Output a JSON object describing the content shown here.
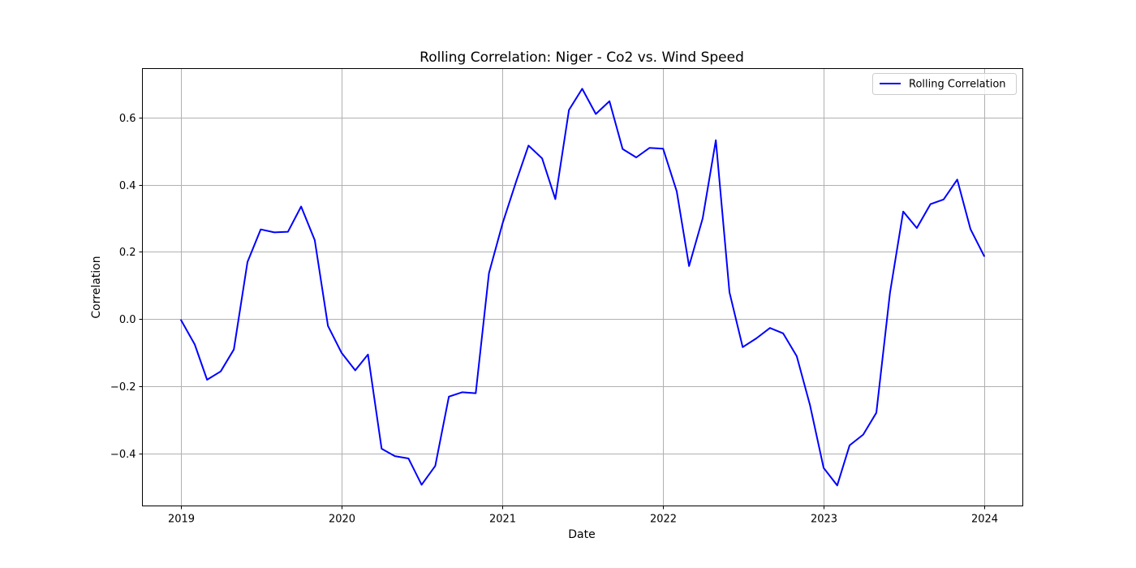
{
  "chart_data": {
    "type": "line",
    "title": "Rolling Correlation: Niger - Co2 vs. Wind Speed",
    "xlabel": "Date",
    "ylabel": "Correlation",
    "x_tick_labels": [
      "2019",
      "2020",
      "2021",
      "2022",
      "2023",
      "2024"
    ],
    "y_tick_labels": [
      "−0.4",
      "−0.2",
      "0.0",
      "0.2",
      "0.4",
      "0.6"
    ],
    "y_ticks": [
      -0.4,
      -0.2,
      0.0,
      0.2,
      0.4,
      0.6
    ],
    "xlim": [
      "2018-10-05",
      "2024-03-29"
    ],
    "ylim": [
      -0.555,
      0.745
    ],
    "grid": true,
    "legend": {
      "position": "top-right",
      "entries": [
        "Rolling Correlation"
      ]
    },
    "series": [
      {
        "name": "Rolling Correlation",
        "color": "#0000ff",
        "x": [
          "2019-01",
          "2019-02",
          "2019-03",
          "2019-04",
          "2019-05",
          "2019-06",
          "2019-07",
          "2019-08",
          "2019-09",
          "2019-10",
          "2019-11",
          "2019-12",
          "2020-01",
          "2020-02",
          "2020-03",
          "2020-04",
          "2020-05",
          "2020-06",
          "2020-07",
          "2020-08",
          "2020-09",
          "2020-10",
          "2020-11",
          "2020-12",
          "2021-01",
          "2021-02",
          "2021-03",
          "2021-04",
          "2021-05",
          "2021-06",
          "2021-07",
          "2021-08",
          "2021-09",
          "2021-10",
          "2021-11",
          "2021-12",
          "2022-01",
          "2022-02",
          "2022-03",
          "2022-04",
          "2022-05",
          "2022-06",
          "2022-07",
          "2022-08",
          "2022-09",
          "2022-10",
          "2022-11",
          "2022-12",
          "2023-01",
          "2023-02",
          "2023-03",
          "2023-04",
          "2023-05",
          "2023-06",
          "2023-07",
          "2023-08",
          "2023-09",
          "2023-10",
          "2023-11",
          "2023-12",
          "2024-01"
        ],
        "y": [
          -0.003,
          -0.075,
          -0.18,
          -0.155,
          -0.09,
          0.17,
          0.267,
          0.258,
          0.26,
          0.335,
          0.235,
          -0.02,
          -0.1,
          -0.152,
          -0.105,
          -0.385,
          -0.407,
          -0.414,
          -0.492,
          -0.436,
          -0.23,
          -0.217,
          -0.22,
          0.137,
          0.285,
          0.41,
          0.516,
          0.478,
          0.357,
          0.622,
          0.685,
          0.61,
          0.648,
          0.506,
          0.481,
          0.509,
          0.507,
          0.38,
          0.158,
          0.3,
          0.532,
          0.08,
          -0.083,
          -0.057,
          -0.026,
          -0.042,
          -0.11,
          -0.255,
          -0.442,
          -0.494,
          -0.375,
          -0.343,
          -0.278,
          0.078,
          0.32,
          0.271,
          0.342,
          0.356,
          0.415,
          0.268,
          0.188
        ]
      }
    ]
  }
}
